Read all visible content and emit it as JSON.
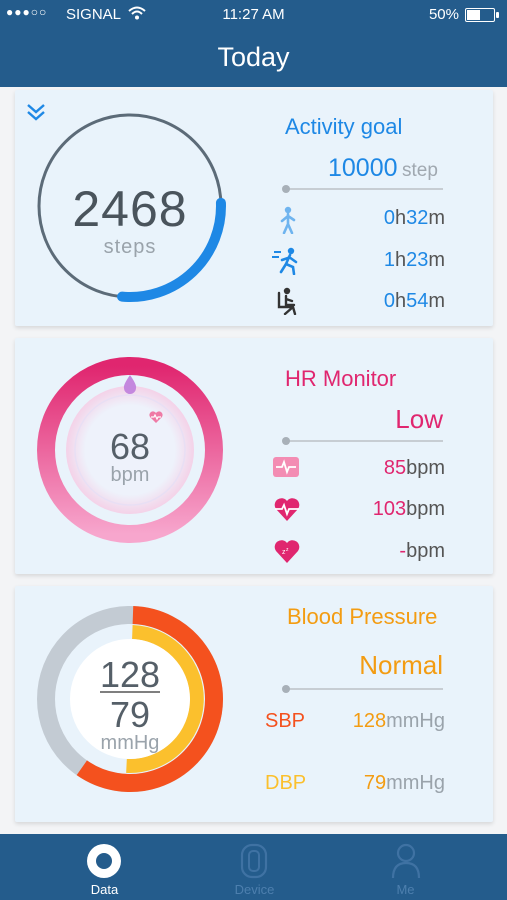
{
  "status": {
    "signal_dots": "●●●○○",
    "carrier": "SIGNAL",
    "time": "11:27 AM",
    "battery": "50%",
    "battery_level": 0.5
  },
  "header": {
    "title": "Today"
  },
  "activity": {
    "title": "Activity goal",
    "steps": "2468",
    "steps_unit": "steps",
    "goal_value": "10000",
    "goal_unit": "step",
    "progress": 0.25,
    "rows": [
      {
        "icon": "walking-icon",
        "h": "0",
        "h_unit": "h",
        "m": "32",
        "m_unit": "m"
      },
      {
        "icon": "running-icon",
        "h": "1",
        "h_unit": "h",
        "m": "23",
        "m_unit": "m"
      },
      {
        "icon": "sitting-icon",
        "h": "0",
        "h_unit": "h",
        "m": "54",
        "m_unit": "m"
      }
    ],
    "colors": {
      "accent": "#1e88e5",
      "ring": "#5c6b78"
    }
  },
  "hr": {
    "title": "HR Monitor",
    "status": "Low",
    "value": "68",
    "unit": "bpm",
    "rows": [
      {
        "icon": "heart-rate-monitor-icon",
        "val": "85",
        "unit": "bpm"
      },
      {
        "icon": "heart-pulse-icon",
        "val": "103",
        "unit": "bpm"
      },
      {
        "icon": "heart-sleep-icon",
        "val": "-",
        "unit": "bpm"
      }
    ],
    "colors": {
      "accent": "#e0266f",
      "light": "#f7a6cd"
    }
  },
  "bp": {
    "title": "Blood Pressure",
    "status": "Normal",
    "systolic": "128",
    "diastolic": "79",
    "unit": "mmHg",
    "sbp_label": "SBP",
    "sbp_val": "128",
    "sbp_unit": "mmHg",
    "dbp_label": "DBP",
    "dbp_val": "79",
    "dbp_unit": "mmHg",
    "colors": {
      "orange": "#f39c12",
      "red": "#f4511e",
      "yellow": "#fbc02d"
    }
  },
  "tabs": [
    {
      "label": "Data",
      "active": true
    },
    {
      "label": "Device",
      "active": false
    },
    {
      "label": "Me",
      "active": false
    }
  ]
}
